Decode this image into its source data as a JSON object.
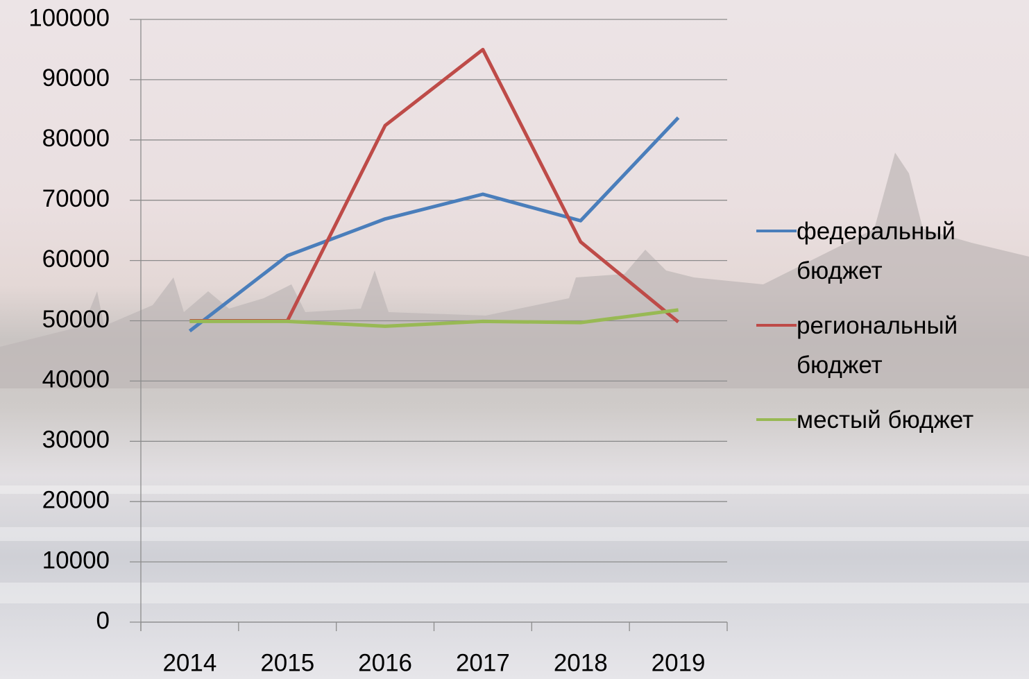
{
  "chart_data": {
    "type": "line",
    "categories": [
      "2014",
      "2015",
      "2016",
      "2017",
      "2018",
      "2019"
    ],
    "series": [
      {
        "name": "федеральный бюджет",
        "color": "#4a7ebb",
        "values": [
          48300,
          60800,
          66900,
          71000,
          66600,
          83700
        ]
      },
      {
        "name": "региональный бюджет",
        "color": "#be4b48",
        "values": [
          50000,
          50000,
          82400,
          95000,
          63100,
          49800
        ]
      },
      {
        "name": "местый бюджет",
        "color": "#98b954",
        "values": [
          49900,
          49900,
          49100,
          49900,
          49700,
          51800
        ]
      }
    ],
    "ylim": [
      0,
      100000
    ],
    "yticks": [
      0,
      10000,
      20000,
      30000,
      40000,
      50000,
      60000,
      70000,
      80000,
      90000,
      100000
    ],
    "grid": true,
    "legend": "right"
  }
}
